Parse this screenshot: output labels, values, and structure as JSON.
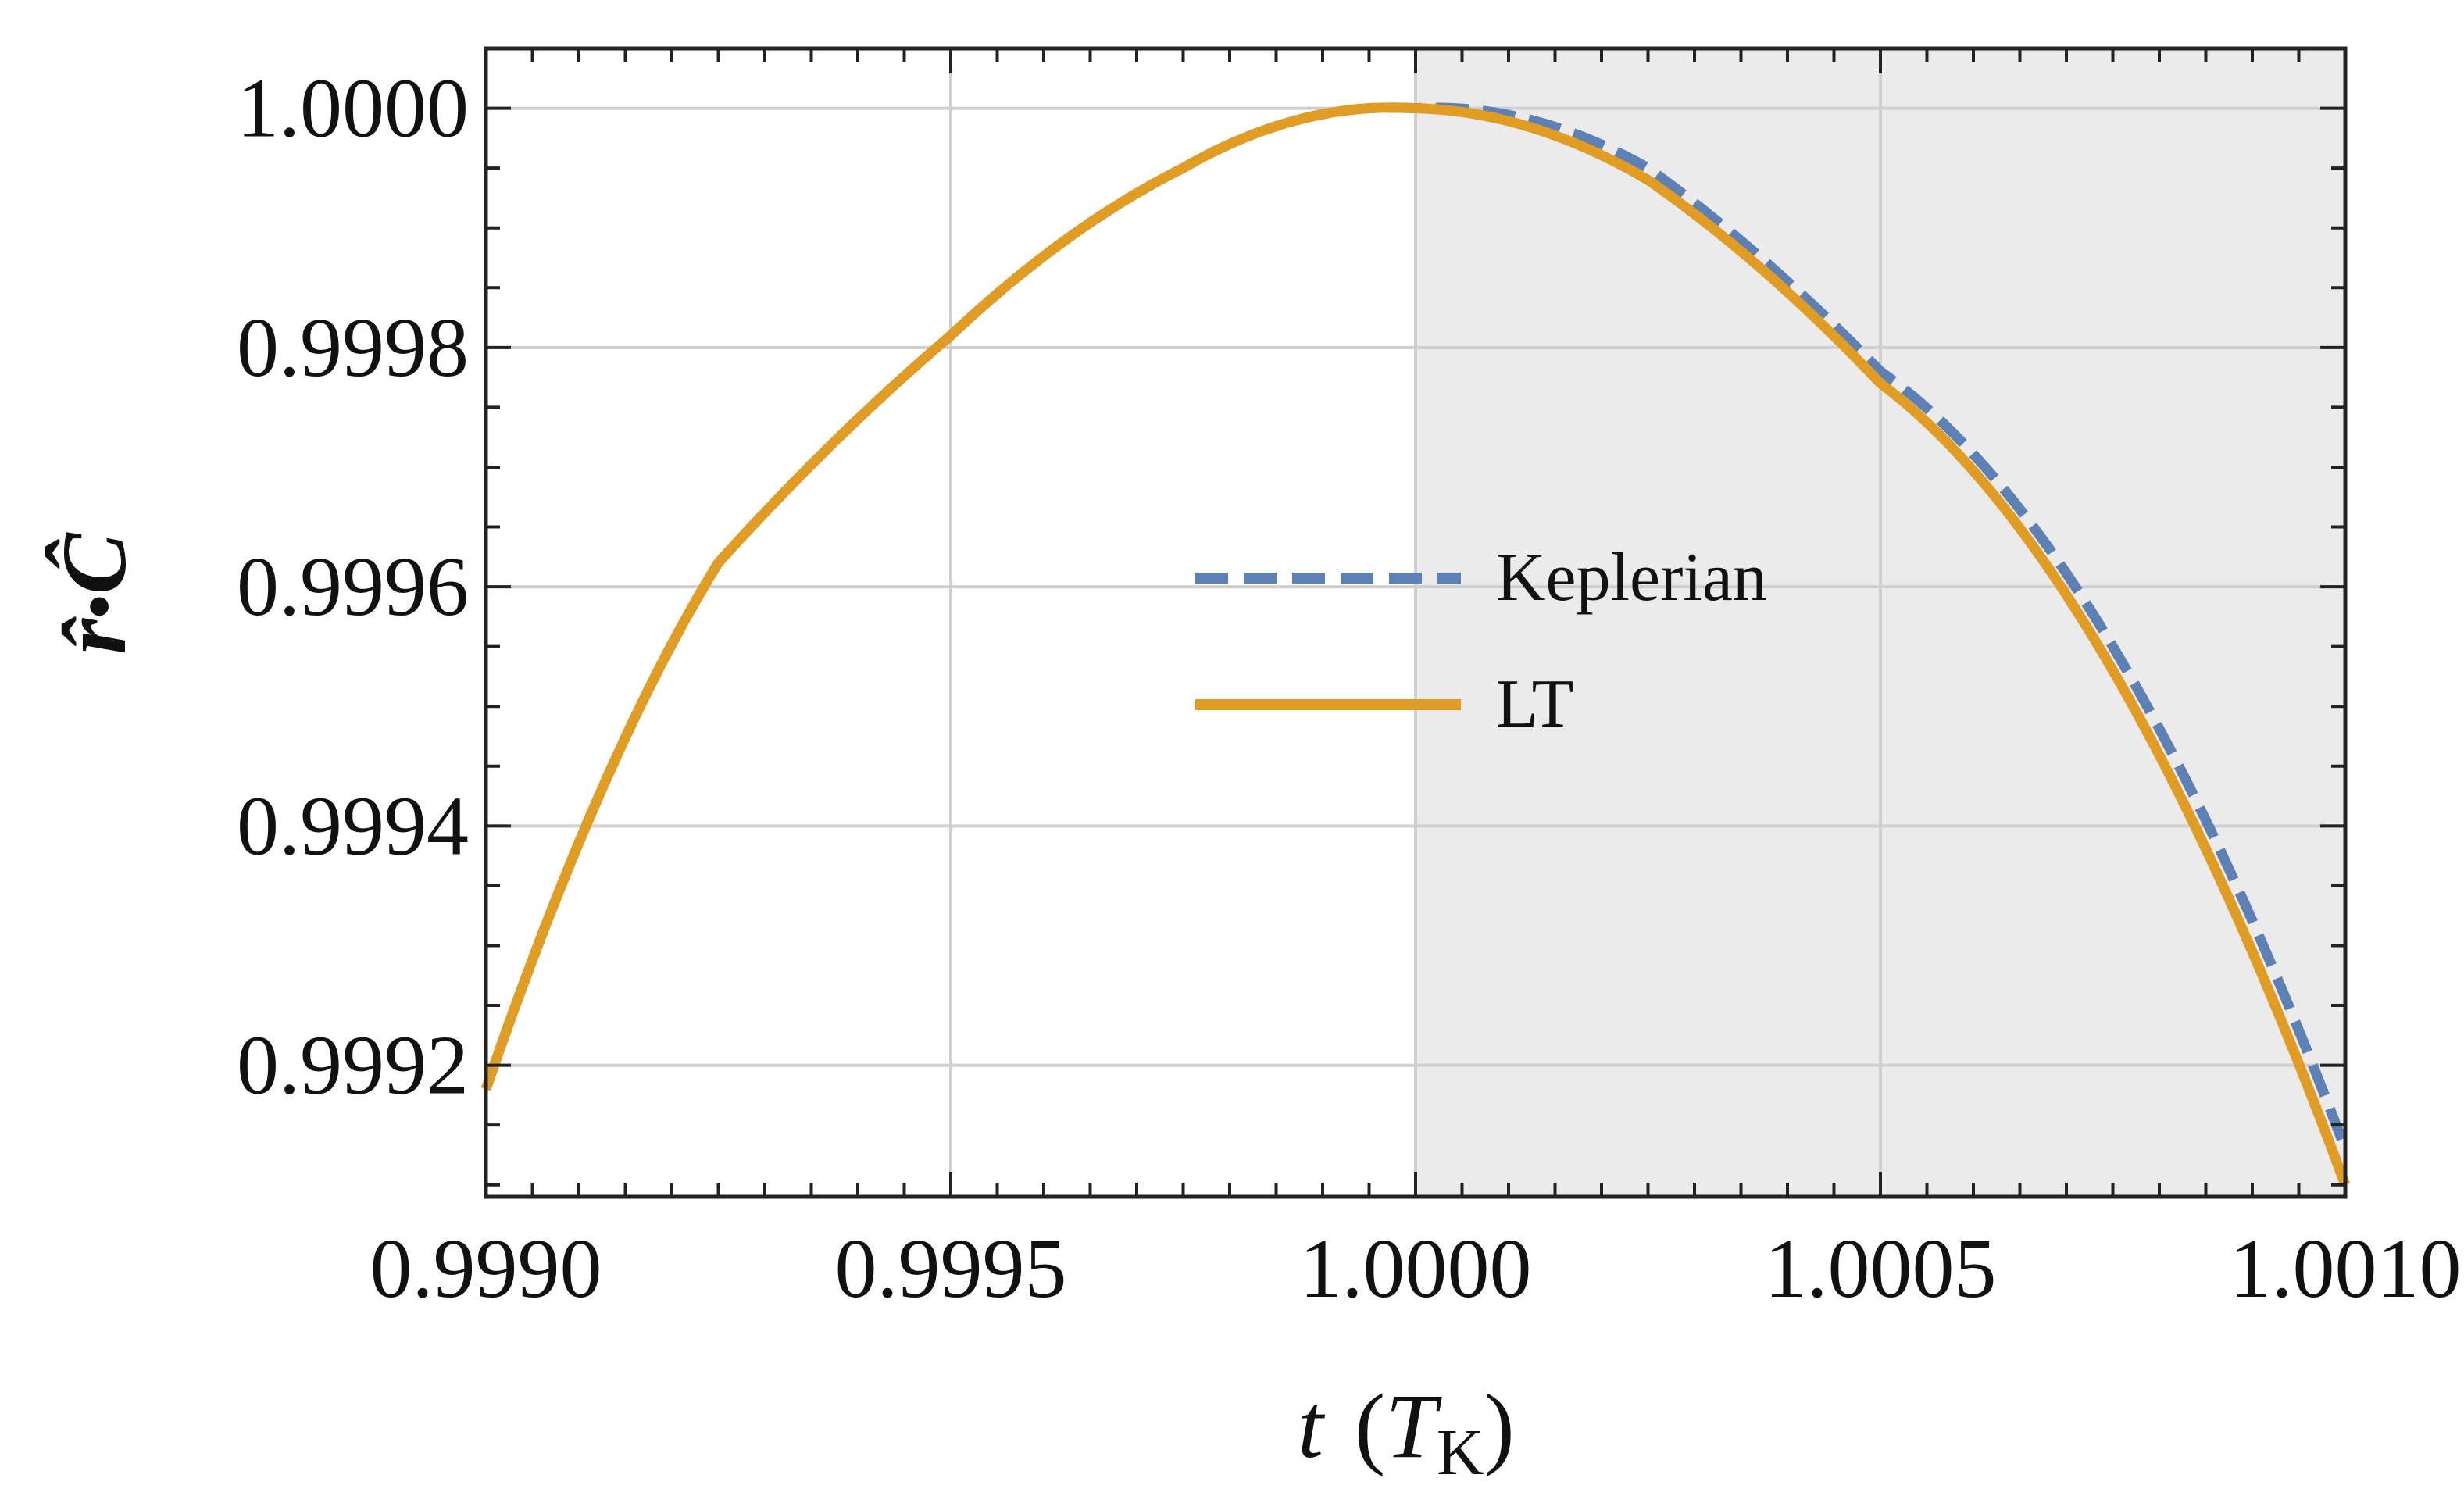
{
  "chart_data": {
    "type": "line",
    "title": "",
    "xlabel": {
      "var": "t",
      "unit": "T",
      "unit_sub": "K"
    },
    "ylabel": {
      "a": "r̂",
      "dot": "•",
      "b": "Ĉ"
    },
    "xlim": [
      0.999,
      1.001
    ],
    "ylim": [
      0.99909,
      1.00005
    ],
    "xticks": [
      0.999,
      0.9995,
      1.0,
      1.0005,
      1.001
    ],
    "xtick_labels": [
      "0.9990",
      "0.9995",
      "1.0000",
      "1.0005",
      "1.0010"
    ],
    "yticks": [
      0.9992,
      0.9994,
      0.9996,
      0.9998,
      1.0
    ],
    "ytick_labels": [
      "0.9992",
      "0.9994",
      "0.9996",
      "0.9998",
      "1.0000"
    ],
    "grid": true,
    "shaded_region": {
      "x_from": 1.0,
      "x_to": 1.001,
      "color": "#ebebeb"
    },
    "legend_position": "center",
    "series": [
      {
        "name": "Keplerian",
        "style": "dashed",
        "color": "#5e81b5",
        "x": [
          0.999,
          0.99925,
          0.9995,
          0.99975,
          0.99995,
          1.0,
          1.00025,
          1.0005,
          1.00075,
          1.001
        ],
        "y": [
          0.99918,
          0.99962,
          0.99981,
          0.99995,
          1.0,
          1.0,
          0.99995,
          0.99978,
          0.99955,
          0.99913
        ]
      },
      {
        "name": "LT",
        "style": "solid",
        "color": "#e19c24",
        "x": [
          0.999,
          0.99925,
          0.9995,
          0.99975,
          0.99995,
          1.0,
          1.00025,
          1.0005,
          1.00075,
          1.001
        ],
        "y": [
          0.99918,
          0.99962,
          0.99981,
          0.99995,
          1.0,
          1.0,
          0.99994,
          0.99977,
          0.99953,
          0.9991
        ]
      }
    ]
  }
}
